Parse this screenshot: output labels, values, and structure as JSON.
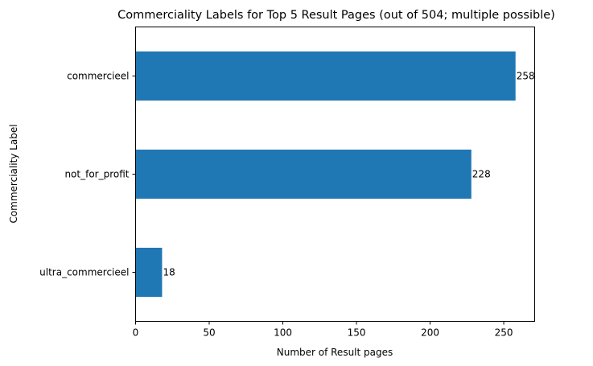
{
  "chart_data": {
    "type": "bar",
    "orientation": "horizontal",
    "title": "Commerciality Labels for Top 5 Result Pages (out of 504; multiple possible)",
    "xlabel": "Number of Result pages",
    "ylabel": "Commerciality Label",
    "categories": [
      "commercieel",
      "not_for_profit",
      "ultra_commercieel"
    ],
    "values": [
      258,
      228,
      18
    ],
    "value_labels": [
      "258",
      "228",
      "18"
    ],
    "xlim": [
      0,
      271
    ],
    "xticks": [
      0,
      50,
      100,
      150,
      200,
      250
    ],
    "xtick_labels": [
      "0",
      "50",
      "100",
      "150",
      "200",
      "250"
    ],
    "bar_color": "#1f77b4",
    "grid": false,
    "legend": "none"
  }
}
